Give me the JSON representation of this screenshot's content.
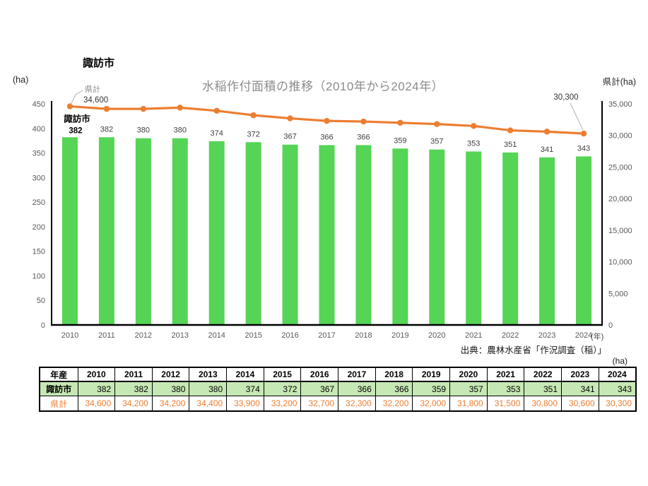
{
  "chart": {
    "corner_title": "諏訪市",
    "title": "水稲作付面積の推移（2010年から2024年）",
    "left_axis_unit": "(ha)",
    "right_axis_unit": "県計(ha)",
    "x_unit_label": "(年)",
    "source": "出典：農林水産省「作況調査（稲）」",
    "annotations": {
      "line_series_label": "県計",
      "line_first_value": "34,600",
      "line_last_value": "30,300",
      "bar_series_label": "諏訪市",
      "bar_first_value": "382"
    }
  },
  "chart_data": {
    "type": "combo",
    "title": "水稲作付面積の推移（2010年から2024年）",
    "categories": [
      "2010",
      "2011",
      "2012",
      "2013",
      "2014",
      "2015",
      "2016",
      "2017",
      "2018",
      "2019",
      "2020",
      "2021",
      "2022",
      "2023",
      "2024"
    ],
    "series": [
      {
        "name": "諏訪市",
        "type": "bar",
        "axis": "left",
        "color": "#55d455",
        "values": [
          382,
          382,
          380,
          380,
          374,
          372,
          367,
          366,
          366,
          359,
          357,
          353,
          351,
          341,
          343
        ]
      },
      {
        "name": "県計",
        "type": "line",
        "axis": "right",
        "color": "#ed7d31",
        "values": [
          34600,
          34200,
          34200,
          34400,
          33900,
          33200,
          32700,
          32300,
          32200,
          32000,
          31800,
          31500,
          30800,
          30600,
          30300
        ]
      }
    ],
    "left_axis": {
      "label": "(ha)",
      "min": 0,
      "max": 450,
      "step": 50
    },
    "right_axis": {
      "label": "県計(ha)",
      "min": 0,
      "max": 35000,
      "step": 5000
    },
    "x_axis": {
      "label": "(年)"
    },
    "legend": "none",
    "grid": false
  },
  "table": {
    "unit_label": "(ha)",
    "header_label": "年産",
    "years": [
      "2010",
      "2011",
      "2012",
      "2013",
      "2014",
      "2015",
      "2016",
      "2017",
      "2018",
      "2019",
      "2020",
      "2021",
      "2022",
      "2023",
      "2024"
    ],
    "rows": [
      {
        "label": "諏訪市",
        "style": "green",
        "values": [
          "382",
          "382",
          "380",
          "380",
          "374",
          "372",
          "367",
          "366",
          "366",
          "359",
          "357",
          "353",
          "351",
          "341",
          "343"
        ]
      },
      {
        "label": "県計",
        "style": "orange",
        "values": [
          "34,600",
          "34,200",
          "34,200",
          "34,400",
          "33,900",
          "33,200",
          "32,700",
          "32,300",
          "32,200",
          "32,000",
          "31,800",
          "31,500",
          "30,800",
          "30,600",
          "30,300"
        ]
      }
    ]
  },
  "colors": {
    "bar_green": "#55d455",
    "line_orange": "#ed7d31",
    "table_green_bg": "#c6e8b4",
    "table_orange_text": "#ed7d31",
    "title_gray": "#8c8c8c",
    "tick_gray": "#595959",
    "bar_label_gray": "#404040",
    "leader_gray": "#b0b0b0",
    "axis_black": "#000000"
  }
}
